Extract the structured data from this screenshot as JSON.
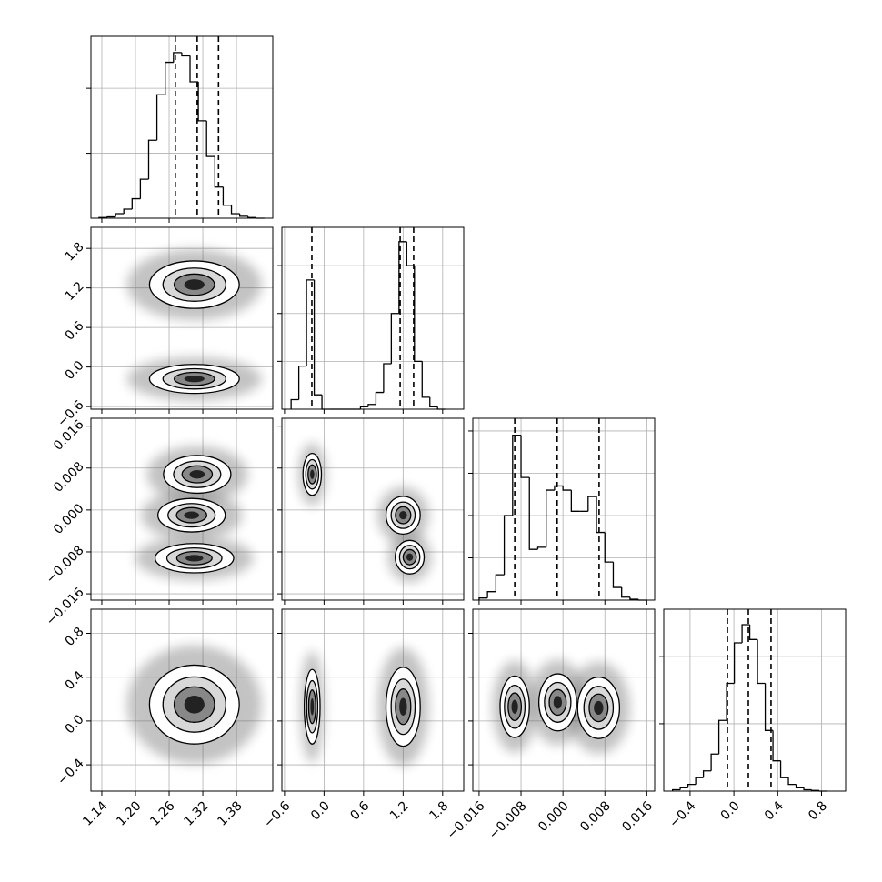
{
  "chart_data": {
    "type": "corner",
    "grid": true,
    "color": "#000000",
    "params": [
      {
        "xlim": [
          1.1206,
          1.4447
        ],
        "xticks": [
          1.14,
          {
            "value": 1.2,
            "label": "1.20"
          },
          1.26,
          1.32,
          1.38
        ],
        "quantiles": [
          1.271,
          1.31,
          1.348
        ],
        "hist": {
          "bins": [
            1.135,
            1.14975,
            1.1645,
            1.17925,
            1.194,
            1.20875,
            1.2235,
            1.23825,
            1.253,
            1.26775,
            1.2825,
            1.29725,
            1.312,
            1.32675,
            1.3415,
            1.35625,
            1.371,
            1.38575,
            1.4005,
            1.41525,
            1.43
          ],
          "values": [
            0.01,
            0.02,
            0.07,
            0.14,
            0.3,
            0.6,
            1.2,
            1.9,
            2.4,
            2.55,
            2.5,
            2.1,
            1.5,
            0.95,
            0.48,
            0.2,
            0.07,
            0.03,
            0.01,
            0
          ],
          "ylim": [
            0,
            2.8
          ],
          "yticks": [
            1,
            2
          ]
        }
      },
      {
        "xlim": [
          -0.64,
          2.12
        ],
        "xticks": [
          {
            "value": -0.6,
            "label": "−0.6"
          },
          {
            "value": 0,
            "label": "0.0"
          },
          0.6,
          1.2,
          1.8
        ],
        "quantiles": [
          -0.185,
          1.155,
          1.36
        ],
        "hist": {
          "bins": [
            -0.5,
            -0.383,
            -0.266,
            -0.149,
            -0.032,
            0.085,
            0.202,
            0.319,
            0.436,
            0.553,
            0.67,
            0.787,
            0.904,
            1.021,
            1.138,
            1.255,
            1.372,
            1.489,
            1.606,
            1.723,
            1.84
          ],
          "values": [
            0.2,
            0.9,
            2.7,
            0.3,
            0,
            0,
            0,
            0,
            0,
            0.05,
            0.1,
            0.35,
            0.95,
            2.0,
            3.5,
            3.0,
            1.0,
            0.25,
            0.05,
            0
          ],
          "ylim": [
            0,
            3.8
          ],
          "yticks": [
            1,
            2,
            3
          ]
        }
      },
      {
        "xlim": [
          -0.0172,
          0.0175
        ],
        "xticks": [
          {
            "value": -0.016,
            "label": "−0.016"
          },
          {
            "value": -0.008,
            "label": "−0.008"
          },
          {
            "value": 0,
            "label": "0.000"
          },
          0.008,
          0.016
        ],
        "quantiles": [
          -0.0092,
          -0.0011,
          0.0069
        ],
        "hist": {
          "bins": [
            -0.016,
            -0.0144,
            -0.0128,
            -0.0112,
            -0.0096,
            -0.008,
            -0.0064,
            -0.0048,
            -0.0032,
            -0.0016,
            0,
            0.0016,
            0.0032,
            0.0048,
            0.0064,
            0.008,
            0.0096,
            0.0112,
            0.0128,
            0.0144,
            0.016
          ],
          "values": [
            0.05,
            0.2,
            0.6,
            2.0,
            3.9,
            2.9,
            1.2,
            1.25,
            2.6,
            2.7,
            2.6,
            2.1,
            2.1,
            2.45,
            1.6,
            0.9,
            0.3,
            0.07,
            0.02,
            0
          ],
          "ylim": [
            0,
            4.3
          ],
          "yticks": [
            1,
            2,
            3,
            4
          ]
        }
      },
      {
        "xlim": [
          -0.64,
          1.02
        ],
        "xticks": [
          {
            "value": -0.4,
            "label": "−0.4"
          },
          {
            "value": 0,
            "label": "0.0"
          },
          0.4,
          0.8
        ],
        "quantiles": [
          -0.059,
          0.132,
          0.339
        ],
        "hist": {
          "bins": [
            -0.56,
            -0.4895,
            -0.419,
            -0.3485,
            -0.278,
            -0.2075,
            -0.137,
            -0.0665,
            0.004,
            0.0745,
            0.145,
            0.2155,
            0.286,
            0.3565,
            0.427,
            0.4975,
            0.568,
            0.6385,
            0.709,
            0.7795,
            0.85
          ],
          "values": [
            0.02,
            0.05,
            0.1,
            0.2,
            0.3,
            0.55,
            1.05,
            1.6,
            2.2,
            2.47,
            2.25,
            1.6,
            0.9,
            0.45,
            0.2,
            0.1,
            0.05,
            0.02,
            0.01,
            0
          ],
          "ylim": [
            0,
            2.7
          ],
          "yticks": [
            1,
            2
          ]
        }
      }
    ],
    "pairs": [
      {
        "x": 0,
        "y": 1,
        "modes": [
          {
            "x": 1.305,
            "y": 1.25,
            "sx": 0.04,
            "sy": 0.18
          },
          {
            "x": 1.305,
            "y": -0.18,
            "sx": 0.04,
            "sy": 0.11
          }
        ]
      },
      {
        "x": 0,
        "y": 2,
        "modes": [
          {
            "x": 1.31,
            "y": 0.0068,
            "sx": 0.03,
            "sy": 0.0018
          },
          {
            "x": 1.3,
            "y": -0.001,
            "sx": 0.03,
            "sy": 0.0016
          },
          {
            "x": 1.305,
            "y": -0.0092,
            "sx": 0.035,
            "sy": 0.0014
          }
        ]
      },
      {
        "x": 1,
        "y": 2,
        "modes": [
          {
            "x": -0.18,
            "y": 0.0068,
            "sx": 0.07,
            "sy": 0.002
          },
          {
            "x": 1.2,
            "y": -0.001,
            "sx": 0.13,
            "sy": 0.0018
          },
          {
            "x": 1.3,
            "y": -0.009,
            "sx": 0.11,
            "sy": 0.0016
          }
        ]
      },
      {
        "x": 0,
        "y": 3,
        "modes": [
          {
            "x": 1.305,
            "y": 0.15,
            "sx": 0.04,
            "sy": 0.18
          }
        ]
      },
      {
        "x": 1,
        "y": 3,
        "modes": [
          {
            "x": -0.18,
            "y": 0.13,
            "sx": 0.06,
            "sy": 0.17
          },
          {
            "x": 1.2,
            "y": 0.13,
            "sx": 0.13,
            "sy": 0.18
          }
        ]
      },
      {
        "x": 2,
        "y": 3,
        "modes": [
          {
            "x": -0.0092,
            "y": 0.13,
            "sx": 0.0014,
            "sy": 0.14
          },
          {
            "x": -0.001,
            "y": 0.17,
            "sx": 0.0018,
            "sy": 0.13
          },
          {
            "x": 0.0068,
            "y": 0.12,
            "sx": 0.002,
            "sy": 0.14
          }
        ]
      }
    ]
  }
}
